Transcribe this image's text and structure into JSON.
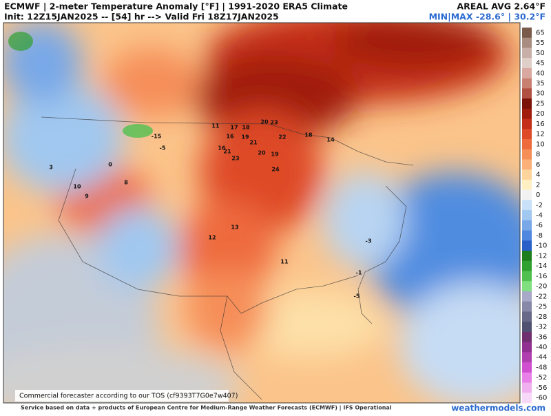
{
  "header": {
    "title": "ECMWF | 2-meter Temperature Anomaly [°F] | 1991-2020 ERA5 Climate",
    "init": "Init: 12Z15JAN2025 -- [54] hr --> Valid Fri 18Z17JAN2025",
    "area_avg": "AREAL AVG 2.64°F",
    "minmax": "MIN|MAX -28.6° | 30.2°F"
  },
  "colorbar": {
    "items": [
      {
        "label": 65,
        "color": "#7a5a4a"
      },
      {
        "label": 55,
        "color": "#a88d80"
      },
      {
        "label": 50,
        "color": "#c8b0a8"
      },
      {
        "label": 45,
        "color": "#e0cfc8"
      },
      {
        "label": 40,
        "color": "#d9a8a0"
      },
      {
        "label": 35,
        "color": "#c88070"
      },
      {
        "label": 30,
        "color": "#b05040"
      },
      {
        "label": 25,
        "color": "#7a1208"
      },
      {
        "label": 20,
        "color": "#a01c0c"
      },
      {
        "label": 16,
        "color": "#c42e18"
      },
      {
        "label": 12,
        "color": "#de4a28"
      },
      {
        "label": 10,
        "color": "#ee6a3c"
      },
      {
        "label": 8,
        "color": "#f68e58"
      },
      {
        "label": 6,
        "color": "#fbb07a"
      },
      {
        "label": 4,
        "color": "#fdd49c"
      },
      {
        "label": 2,
        "color": "#fff0c4"
      },
      {
        "label": 0,
        "color": "#f2f2f2"
      },
      {
        "label": -2,
        "color": "#c8e0f8"
      },
      {
        "label": -4,
        "color": "#a0c8f0"
      },
      {
        "label": -6,
        "color": "#78a8e8"
      },
      {
        "label": -8,
        "color": "#5088e0"
      },
      {
        "label": -10,
        "color": "#2860c8"
      },
      {
        "label": -12,
        "color": "#1e7e1e"
      },
      {
        "label": -14,
        "color": "#30a030"
      },
      {
        "label": -16,
        "color": "#50c050"
      },
      {
        "label": -20,
        "color": "#80e080"
      },
      {
        "label": -22,
        "color": "#a8a8c8"
      },
      {
        "label": -25,
        "color": "#8888a8"
      },
      {
        "label": -28,
        "color": "#686888"
      },
      {
        "label": -32,
        "color": "#505070"
      },
      {
        "label": -36,
        "color": "#703070"
      },
      {
        "label": -40,
        "color": "#903090"
      },
      {
        "label": -44,
        "color": "#b040b0"
      },
      {
        "label": -48,
        "color": "#d050d0"
      },
      {
        "label": -52,
        "color": "#e880e8"
      },
      {
        "label": -56,
        "color": "#f0b0f0"
      },
      {
        "label": -60,
        "color": "#f8d8f8"
      }
    ]
  },
  "map": {
    "disclaimer": "Commercial forecaster according to our TOS (cf9393T7G0e7w407)",
    "stations": [
      "17",
      "18",
      "20",
      "23",
      "16",
      "19",
      "21",
      "22",
      "18",
      "16",
      "21",
      "20",
      "19",
      "23",
      "24",
      "14",
      "11",
      "13",
      "12",
      "10",
      "9",
      "-5",
      "-15",
      "-3",
      "-5",
      "3",
      "0",
      "8",
      "11",
      "-1"
    ]
  },
  "footer": {
    "credit": "Service based on data + products of European Centre for Medium-Range Weather Forecasts (ECMWF) | IFS Operational",
    "site": "weathermodels.com"
  }
}
